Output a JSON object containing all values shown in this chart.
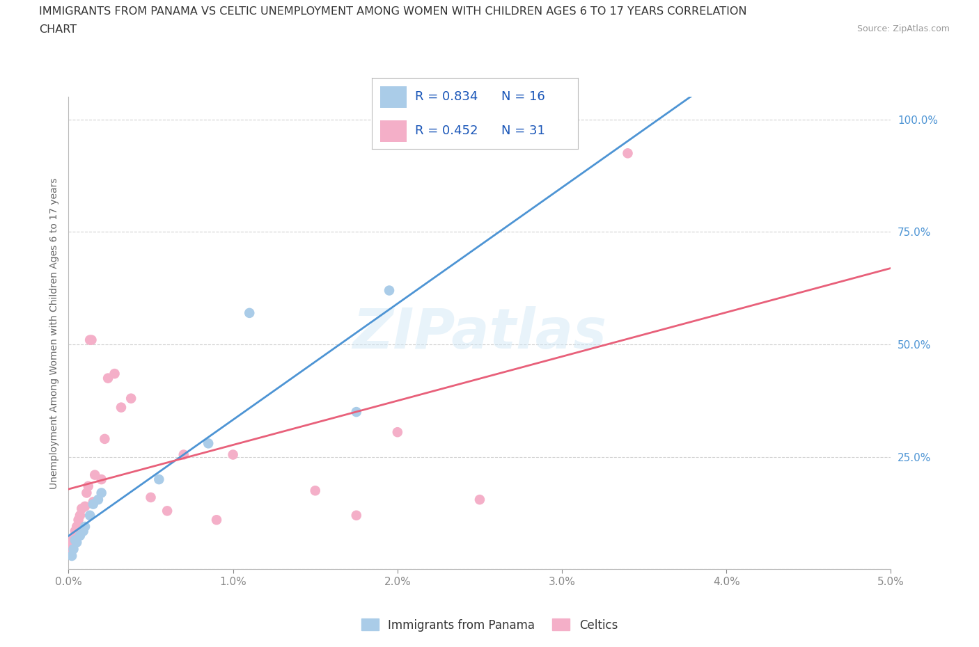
{
  "title_line1": "IMMIGRANTS FROM PANAMA VS CELTIC UNEMPLOYMENT AMONG WOMEN WITH CHILDREN AGES 6 TO 17 YEARS CORRELATION",
  "title_line2": "CHART",
  "source": "Source: ZipAtlas.com",
  "ylabel_label": "Unemployment Among Women with Children Ages 6 to 17 years",
  "xlim": [
    0.0,
    0.05
  ],
  "ylim": [
    0.0,
    1.05
  ],
  "xtick_vals": [
    0.0,
    0.01,
    0.02,
    0.03,
    0.04,
    0.05
  ],
  "xtick_labels": [
    "0.0%",
    "1.0%",
    "2.0%",
    "3.0%",
    "4.0%",
    "5.0%"
  ],
  "ytick_vals": [
    0.0,
    0.25,
    0.5,
    0.75,
    1.0
  ],
  "ytick_labels": [
    "",
    "25.0%",
    "50.0%",
    "75.0%",
    "100.0%"
  ],
  "panama_color": "#aacce8",
  "celtic_color": "#f4afc8",
  "line_panama_color": "#4d94d4",
  "line_celtic_color": "#e8607a",
  "R_panama": 0.834,
  "N_panama": 16,
  "R_celtic": 0.452,
  "N_celtic": 31,
  "watermark": "ZIPatlas",
  "grid_color": "#d0d0d0",
  "panama_x": [
    0.0002,
    0.0003,
    0.0004,
    0.0005,
    0.0007,
    0.0009,
    0.001,
    0.0013,
    0.0015,
    0.0018,
    0.002,
    0.0055,
    0.0085,
    0.011,
    0.0175,
    0.0195
  ],
  "panama_y": [
    0.03,
    0.045,
    0.065,
    0.06,
    0.075,
    0.085,
    0.095,
    0.12,
    0.145,
    0.155,
    0.17,
    0.2,
    0.28,
    0.57,
    0.35,
    0.62
  ],
  "celtic_x": [
    0.0001,
    0.0002,
    0.0003,
    0.0004,
    0.0005,
    0.0006,
    0.0007,
    0.0008,
    0.001,
    0.0011,
    0.0012,
    0.0013,
    0.0014,
    0.0015,
    0.0016,
    0.002,
    0.0022,
    0.0024,
    0.0028,
    0.0032,
    0.0038,
    0.005,
    0.006,
    0.007,
    0.009,
    0.01,
    0.015,
    0.0175,
    0.02,
    0.025,
    0.034
  ],
  "celtic_y": [
    0.045,
    0.06,
    0.07,
    0.085,
    0.095,
    0.11,
    0.12,
    0.135,
    0.14,
    0.17,
    0.185,
    0.51,
    0.51,
    0.15,
    0.21,
    0.2,
    0.29,
    0.425,
    0.435,
    0.36,
    0.38,
    0.16,
    0.13,
    0.255,
    0.11,
    0.255,
    0.175,
    0.12,
    0.305,
    0.155,
    0.925
  ],
  "legend_text_color": "#1a56b8",
  "background_color": "#ffffff"
}
